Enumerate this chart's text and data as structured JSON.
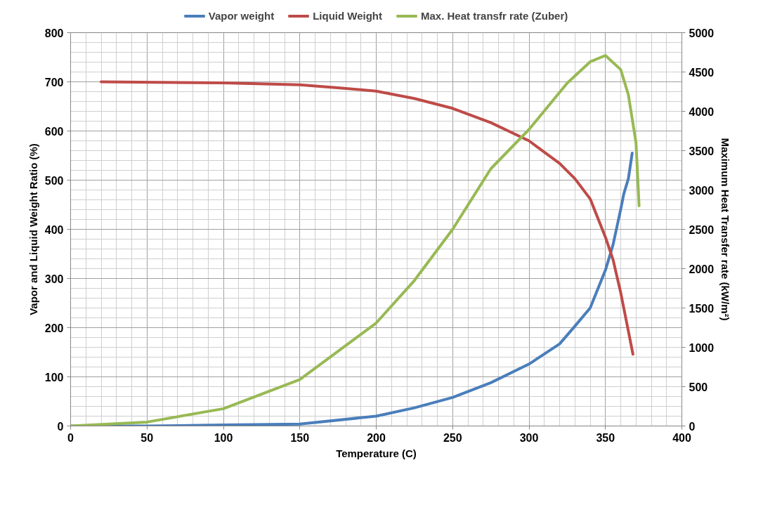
{
  "chart_data": {
    "type": "line",
    "xlabel": "Temperature (C)",
    "ylabel": "Vapor and Liquid Weight Ratio (%)",
    "y2label": "Maximum Heat Transfer rate (kW/m²)",
    "xlim": [
      0,
      400
    ],
    "xticks": [
      0,
      50,
      100,
      150,
      200,
      250,
      300,
      350,
      400
    ],
    "ylim": [
      0,
      800
    ],
    "yticks": [
      0,
      100,
      200,
      300,
      400,
      500,
      600,
      700,
      800
    ],
    "y2lim": [
      0,
      5000
    ],
    "y2ticks": [
      0,
      500,
      1000,
      1500,
      2000,
      2500,
      3000,
      3500,
      4000,
      4500,
      5000
    ],
    "grid": true,
    "legend": "top",
    "line_style": "solid",
    "marker": "none",
    "series": [
      {
        "name": "Vapor weight",
        "color": "#4a7ebb",
        "x": [
          0,
          50,
          100,
          150,
          200,
          225,
          250,
          275,
          300,
          320,
          330,
          340,
          350,
          355,
          360,
          362,
          365,
          367.5
        ],
        "values": [
          0,
          0,
          2,
          4,
          20,
          37,
          58,
          88,
          126,
          167,
          203,
          240,
          317,
          369,
          441,
          472,
          503,
          555
        ]
      },
      {
        "name": "Liquid Weight",
        "color": "#be4b48",
        "x": [
          20,
          100,
          150,
          175,
          200,
          225,
          250,
          275,
          300,
          320,
          330,
          340,
          350,
          355,
          360,
          365,
          368
        ],
        "values": [
          700,
          698,
          694,
          688,
          681,
          666,
          646,
          617,
          580,
          534,
          503,
          462,
          384,
          338,
          271,
          193,
          146
        ]
      },
      {
        "name": "Max. Heat transfr rate (Zuber)",
        "color": "#98b954",
        "axis": "y2",
        "x": [
          0,
          50,
          100,
          150,
          200,
          225,
          250,
          275,
          300,
          325,
          340,
          350,
          360,
          365,
          370,
          372
        ],
        "values": [
          0,
          50,
          220,
          590,
          1310,
          1850,
          2500,
          3270,
          3770,
          4360,
          4630,
          4710,
          4530,
          4210,
          3600,
          2800
        ]
      }
    ]
  }
}
